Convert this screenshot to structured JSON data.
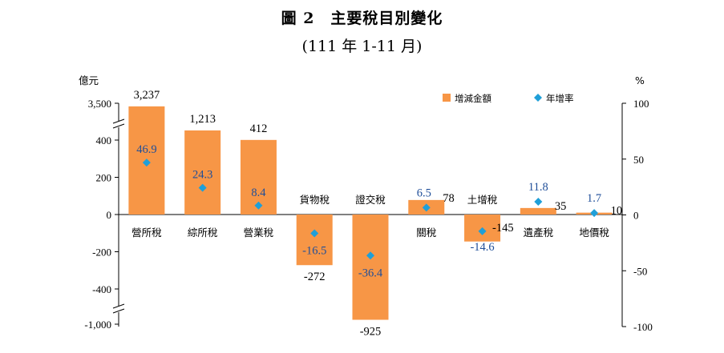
{
  "title": "圖 2　主要稅目別變化",
  "subtitle": "(111 年 1-11 月)",
  "chart_data": {
    "type": "bar",
    "title": "圖 2　主要稅目別變化",
    "subtitle": "(111 年 1-11 月)",
    "left_axis_unit": "億元",
    "right_axis_unit": "%",
    "left_ticks": [
      "3,500",
      "400",
      "200",
      "0",
      "-200",
      "-400",
      "-1,000"
    ],
    "right_ticks": [
      "100",
      "50",
      "0",
      "-50",
      "-100"
    ],
    "right_ylim": [
      -100,
      100
    ],
    "axis_break": true,
    "grid": false,
    "legend_position": "top-right",
    "categories": [
      "營所稅",
      "綜所稅",
      "營業稅",
      "貨物稅",
      "證交稅",
      "關稅",
      "土增稅",
      "遺產稅",
      "地價稅"
    ],
    "series": [
      {
        "name": "增減金額",
        "type": "bar",
        "axis": "left",
        "color": "#F79646",
        "values": [
          3237,
          1213,
          412,
          -272,
          -925,
          78,
          -145,
          35,
          10
        ],
        "labels": [
          "3,237",
          "1,213",
          "412",
          "-272",
          "-925",
          "78",
          "-145",
          "35",
          "10"
        ]
      },
      {
        "name": "年增率",
        "type": "scatter",
        "axis": "right",
        "color": "#1F9FD8",
        "label_color": "#1F4E99",
        "values": [
          46.9,
          24.3,
          8.4,
          -16.5,
          -36.4,
          6.5,
          -14.6,
          11.8,
          1.7
        ],
        "labels": [
          "46.9",
          "24.3",
          "8.4",
          "-16.5",
          "-36.4",
          "6.5",
          "-14.6",
          "11.8",
          "1.7"
        ]
      }
    ]
  }
}
